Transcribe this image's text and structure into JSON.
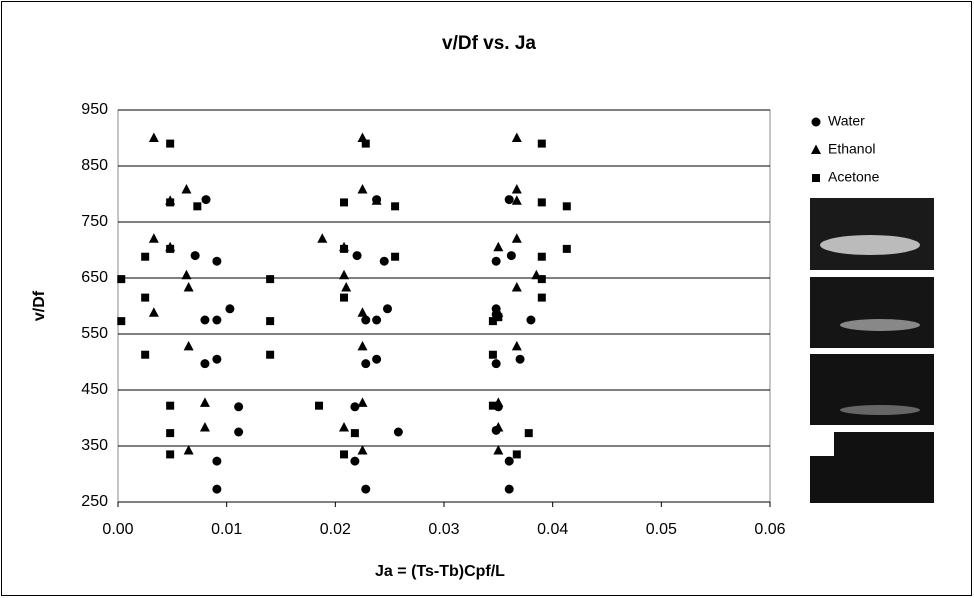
{
  "chart_data": {
    "type": "scatter",
    "title": "v/Df vs. Ja",
    "x_label": "Ja = (Ts-Tb)Cpf/L",
    "y_label": "v/Df",
    "xlim": [
      0,
      0.06
    ],
    "xticks": [
      {
        "value": 0,
        "label": "0.00"
      },
      0.01,
      0.02,
      0.03,
      0.04,
      0.05,
      0.06
    ],
    "ylim": [
      250,
      950
    ],
    "yticks": [
      250,
      350,
      450,
      550,
      650,
      750,
      850,
      950
    ],
    "grid": true,
    "series": [
      {
        "name": "Water",
        "color": "#000000",
        "marker": "circle",
        "x": [
          0.0081,
          0.0071,
          0.0091,
          0.0103,
          0.008,
          0.0091,
          0.0091,
          0.008,
          0.0111,
          0.0111,
          0.0091,
          0.0091,
          0.0238,
          0.022,
          0.0245,
          0.0248,
          0.0228,
          0.0238,
          0.0238,
          0.0228,
          0.0218,
          0.0258,
          0.0218,
          0.0228,
          0.036,
          0.0362,
          0.0348,
          0.0348,
          0.038,
          0.0348,
          0.037,
          0.0348,
          0.035,
          0.0348,
          0.036,
          0.036
        ],
        "values": [
          790,
          690,
          680,
          595,
          575,
          575,
          505,
          497,
          420,
          375,
          323,
          273,
          790,
          690,
          680,
          595,
          575,
          575,
          505,
          497,
          420,
          375,
          323,
          273,
          790,
          690,
          680,
          595,
          575,
          585,
          505,
          497,
          420,
          378,
          323,
          273
        ]
      },
      {
        "name": "Ethanol",
        "color": "#000000",
        "marker": "triangle",
        "x": [
          0.0033,
          0.0063,
          0.0048,
          0.0033,
          0.0048,
          0.0063,
          0.0065,
          0.0033,
          0.0065,
          0.008,
          0.008,
          0.0065,
          0.0225,
          0.0225,
          0.0238,
          0.0188,
          0.0208,
          0.0208,
          0.021,
          0.0225,
          0.0225,
          0.0225,
          0.0208,
          0.0225,
          0.0367,
          0.0367,
          0.0367,
          0.0367,
          0.035,
          0.0385,
          0.0367,
          0.035,
          0.0367,
          0.035,
          0.035,
          0.035
        ],
        "values": [
          900,
          808,
          788,
          720,
          705,
          655,
          633,
          588,
          528,
          427,
          383,
          342,
          900,
          808,
          788,
          720,
          705,
          655,
          633,
          588,
          528,
          427,
          383,
          342,
          900,
          808,
          788,
          720,
          705,
          655,
          633,
          588,
          528,
          427,
          383,
          342
        ]
      },
      {
        "name": "Acetone",
        "color": "#000000",
        "marker": "square",
        "x": [
          0.0048,
          0.0048,
          0.0073,
          0.0025,
          0.0048,
          0.0003,
          0.0025,
          0.0003,
          0.0025,
          0.0048,
          0.0048,
          0.0048,
          0.014,
          0.014,
          0.014,
          0.0228,
          0.0208,
          0.0255,
          0.0255,
          0.0208,
          0.0208,
          0.0218,
          0.0208,
          0.0185,
          0.039,
          0.039,
          0.0413,
          0.039,
          0.0413,
          0.039,
          0.039,
          0.0345,
          0.0345,
          0.0345,
          0.0378,
          0.0367,
          0.035
        ],
        "values": [
          890,
          785,
          778,
          688,
          702,
          648,
          615,
          573,
          513,
          422,
          373,
          335,
          648,
          573,
          513,
          890,
          785,
          778,
          688,
          702,
          615,
          373,
          335,
          422,
          890,
          785,
          778,
          688,
          702,
          648,
          615,
          573,
          513,
          422,
          373,
          335,
          580
        ]
      }
    ]
  }
}
